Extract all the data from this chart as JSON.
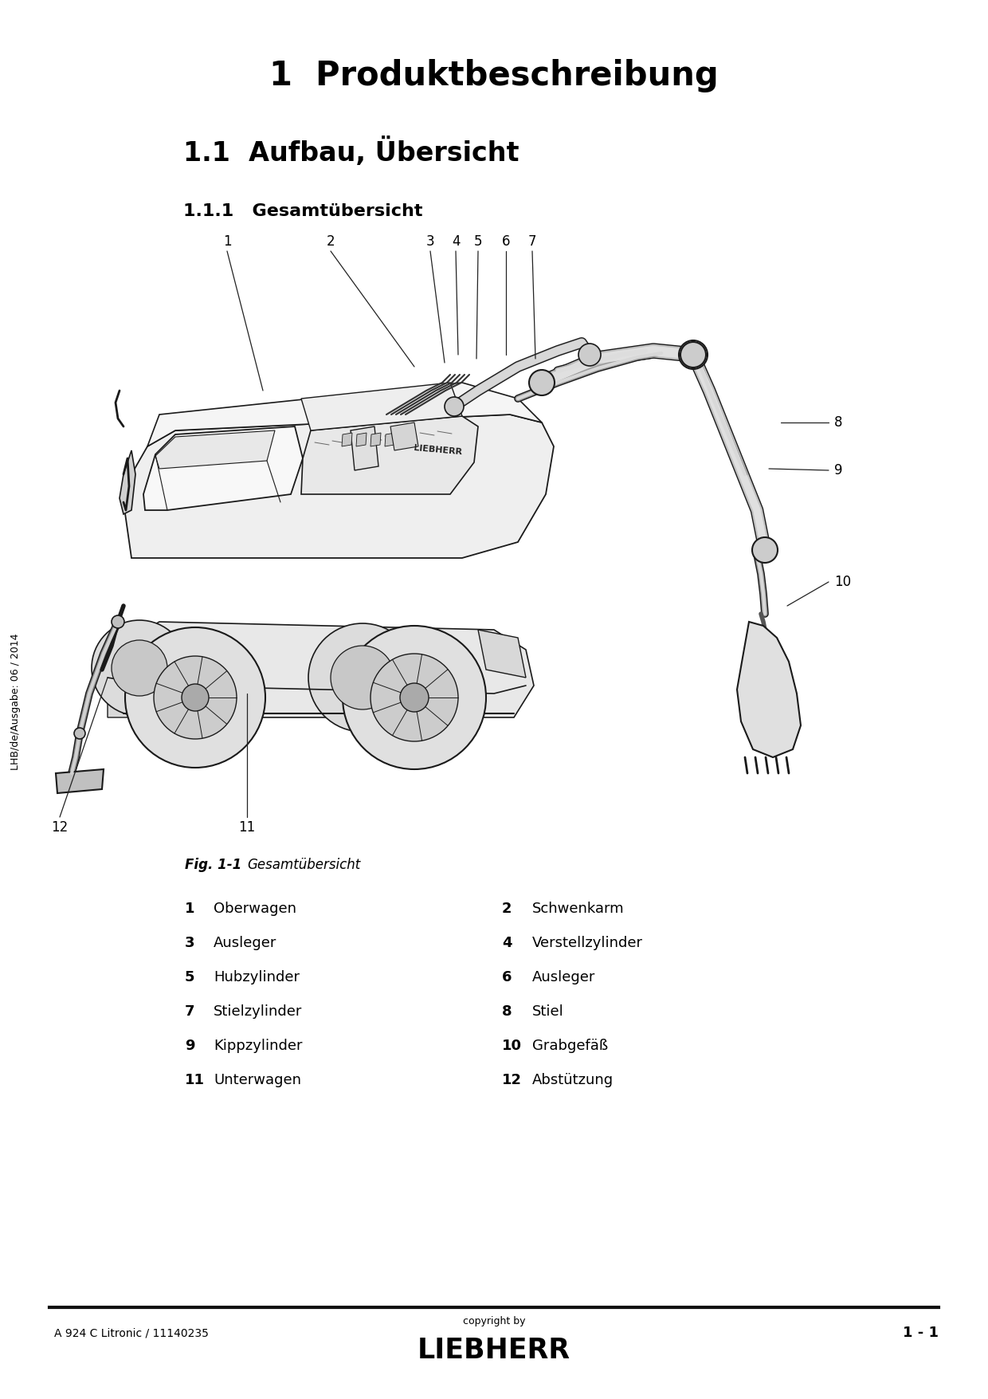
{
  "title1": "1  Produktbeschreibung",
  "title2": "1.1  Aufbau, Übersicht",
  "title3": "1.1.1   Gesamtübersicht",
  "fig_label": "Fig. 1-1",
  "fig_caption": "Gesamtübersicht",
  "sidebar_text": "LHB/de/Ausgabe: 06 / 2014",
  "footer_left": "A 924 C Litronic / 11140235",
  "footer_center_top": "copyright by",
  "footer_center_bottom": "LIEBHERR",
  "footer_right": "1 - 1",
  "parts_left": [
    {
      "num": "1",
      "name": "Oberwagen"
    },
    {
      "num": "3",
      "name": "Ausleger"
    },
    {
      "num": "5",
      "name": "Hubzylinder"
    },
    {
      "num": "7",
      "name": "Stielzylinder"
    },
    {
      "num": "9",
      "name": "Kippzylinder"
    },
    {
      "num": "11",
      "name": "Unterwagen"
    }
  ],
  "parts_right": [
    {
      "num": "2",
      "name": "Schwenkarm"
    },
    {
      "num": "4",
      "name": "Verstellzylinder"
    },
    {
      "num": "6",
      "name": "Ausleger"
    },
    {
      "num": "8",
      "name": "Stiel"
    },
    {
      "num": "10",
      "name": "Grabgefäß"
    },
    {
      "num": "12",
      "name": "Abstützung"
    }
  ],
  "bg_color": "#ffffff",
  "text_color": "#000000",
  "line_color": "#1a1a1a"
}
